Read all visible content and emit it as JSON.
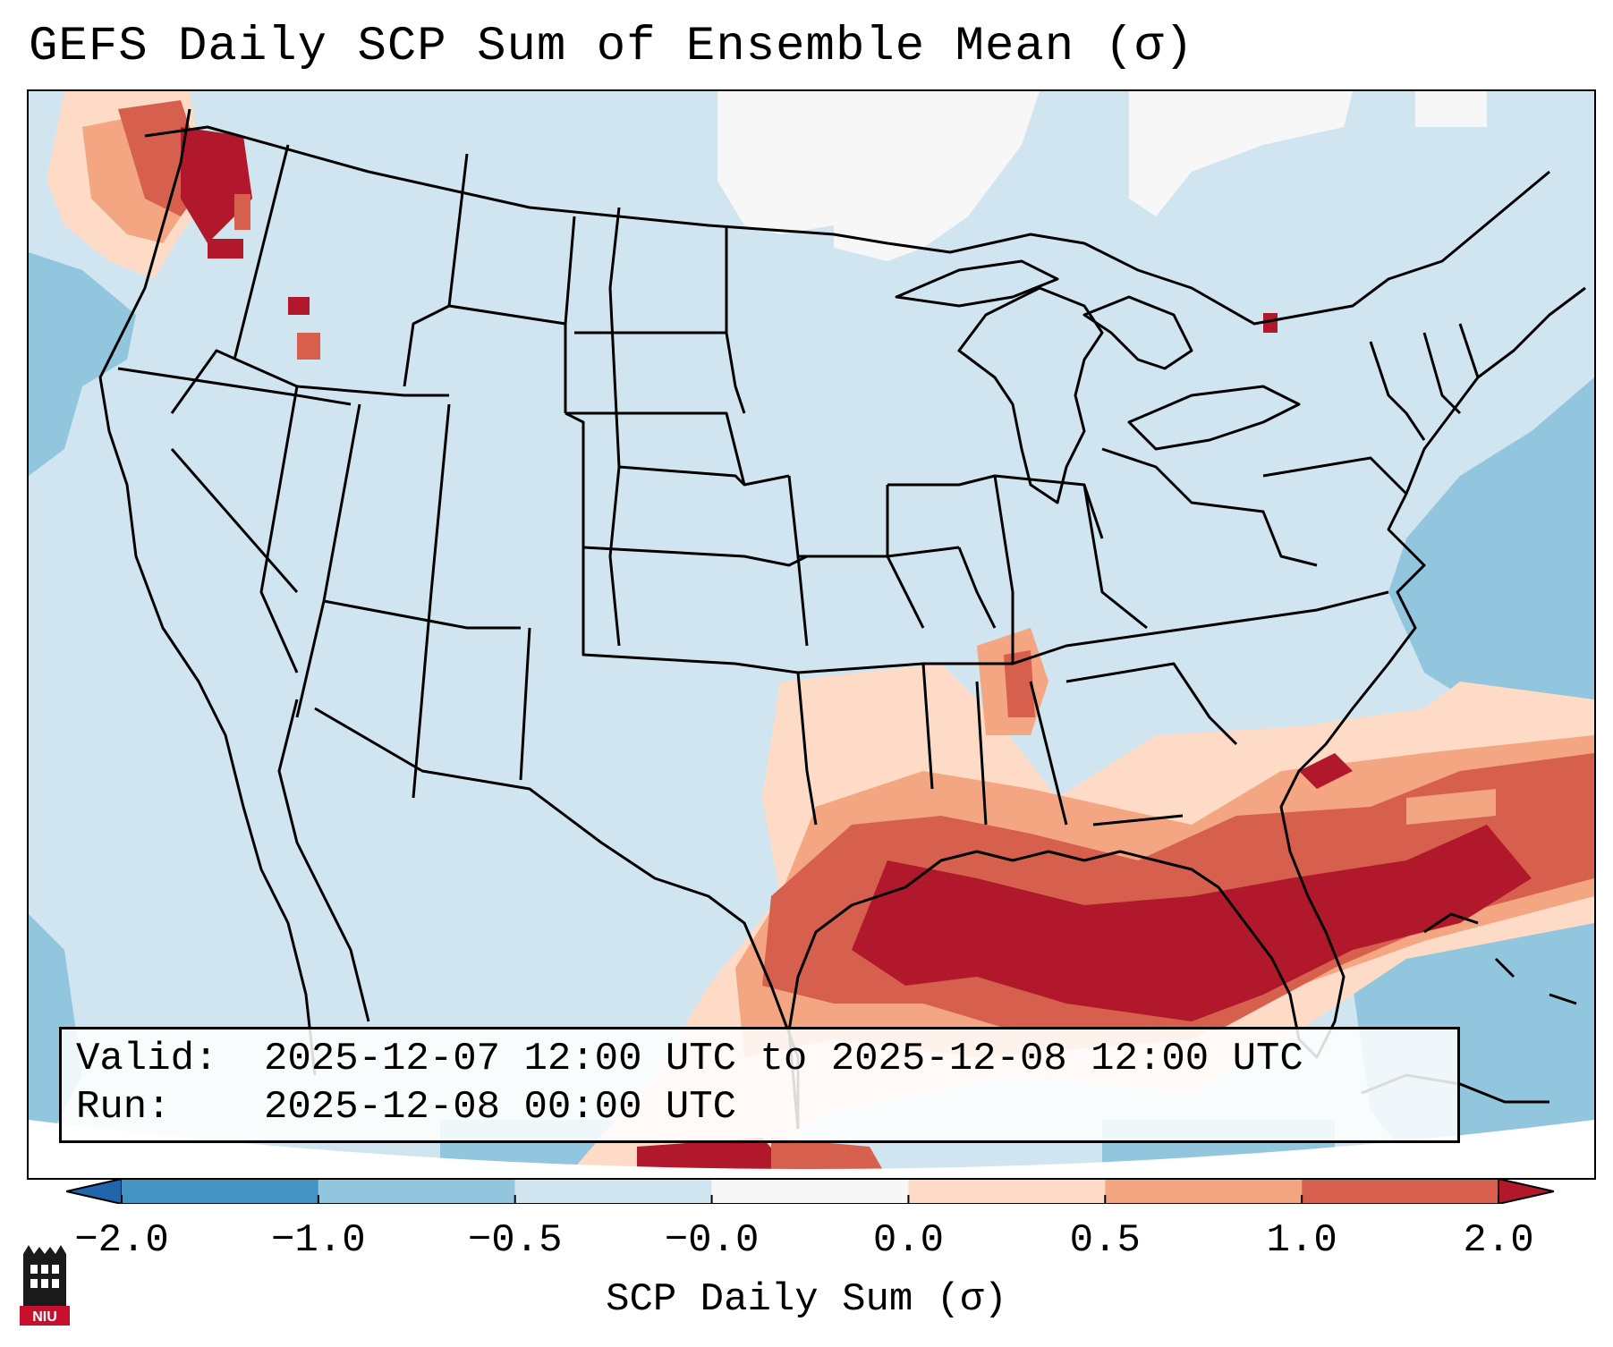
{
  "title": "GEFS Daily SCP Sum of Ensemble Mean (σ)",
  "info": {
    "valid_label": "Valid:",
    "valid_value": "2025-12-07 12:00 UTC to 2025-12-08 12:00 UTC",
    "run_label": "Run:",
    "run_value": "2025-12-08 00:00 UTC"
  },
  "colorbar": {
    "label": "SCP Daily Sum (σ)",
    "ticks": [
      "−2.0",
      "−1.0",
      "−0.5",
      "−0.0",
      "0.0",
      "0.5",
      "1.0",
      "2.0"
    ],
    "bins": [
      {
        "range": "< −2.0",
        "color": "#2166ac"
      },
      {
        "range": "−2.0 to −1.0",
        "color": "#4393c3"
      },
      {
        "range": "−1.0 to −0.5",
        "color": "#92c5de"
      },
      {
        "range": "−0.5 to −0.0",
        "color": "#d1e5f0"
      },
      {
        "range": "−0.0 to 0.0",
        "color": "#f7f7f7"
      },
      {
        "range": "0.0 to 0.5",
        "color": "#fddbc7"
      },
      {
        "range": "0.5 to 1.0",
        "color": "#f4a582"
      },
      {
        "range": "1.0 to 2.0",
        "color": "#d6604d"
      },
      {
        "range": "> 2.0",
        "color": "#b2182b"
      }
    ]
  },
  "map": {
    "projection": "Lambert conformal, CONUS",
    "background_value_color": "#d1e5f0",
    "features": [
      {
        "region": "Pacific Northwest coast",
        "level": "1.0 to 2.0"
      },
      {
        "region": "Gulf of Mexico / Gulf Coast",
        "level": "> 2.0"
      },
      {
        "region": "Florida and western Atlantic",
        "level": "> 2.0"
      },
      {
        "region": "Mississippi / Louisiana",
        "level": "1.0 to 2.0"
      },
      {
        "region": "Atlantic off New England",
        "level": "−1.0 to −0.5"
      },
      {
        "region": "Northern Plains / Canada",
        "level": "−0.0 to 0.0"
      }
    ]
  },
  "logo": {
    "text": "NIU",
    "icon": "niu-logo-icon"
  }
}
